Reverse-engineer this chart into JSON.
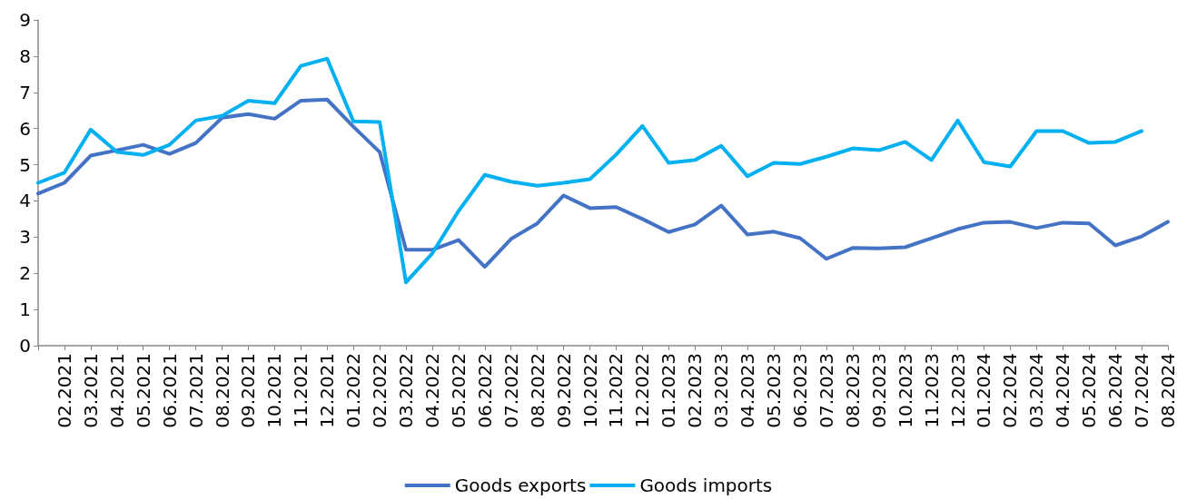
{
  "chart_data": {
    "type": "line",
    "categories": [
      null,
      "02.2021",
      "03.2021",
      "04.2021",
      "05.2021",
      "06.2021",
      "07.2021",
      "08.2021",
      "09.2021",
      "10.2021",
      "11.2021",
      "12.2021",
      "01.2022",
      "02.2022",
      "03.2022",
      "04.2022",
      "05.2022",
      "06.2022",
      "07.2022",
      "08.2022",
      "09.2022",
      "10.2022",
      "11.2022",
      "12.2022",
      "01.2023",
      "02.2023",
      "03.2023",
      "04.2023",
      "05.2023",
      "06.2023",
      "07.2023",
      "08.2023",
      "09.2023",
      "10.2023",
      "11.2023",
      "12.2023",
      "01.2024",
      "02.2024",
      "03.2024",
      "04.2024",
      "05.2024",
      "06.2024",
      "07.2024",
      "08.2024"
    ],
    "series": [
      {
        "name": "Goods exports",
        "color": "#4472c4",
        "values": [
          4.2,
          4.5,
          5.25,
          5.4,
          5.55,
          5.3,
          5.6,
          6.3,
          6.4,
          6.27,
          6.77,
          6.8,
          6.05,
          5.35,
          2.65,
          2.65,
          2.92,
          2.18,
          2.95,
          3.38,
          4.15,
          3.8,
          3.83,
          3.5,
          3.14,
          3.35,
          3.87,
          3.07,
          3.15,
          2.97,
          2.4,
          2.7,
          2.69,
          2.72,
          2.97,
          3.22,
          3.4,
          3.42,
          3.25,
          3.4,
          3.38,
          2.77,
          3.02,
          3.42
        ]
      },
      {
        "name": "Goods imports",
        "color": "#00b0f0",
        "values": [
          4.5,
          4.78,
          5.97,
          5.35,
          5.27,
          5.55,
          6.22,
          6.35,
          6.77,
          6.7,
          7.73,
          7.93,
          6.2,
          6.18,
          1.75,
          2.55,
          3.72,
          4.72,
          4.53,
          4.42,
          4.5,
          4.6,
          5.28,
          6.07,
          5.05,
          5.13,
          5.52,
          4.68,
          5.05,
          5.02,
          5.22,
          5.45,
          5.4,
          5.63,
          5.13,
          6.22,
          5.07,
          4.95,
          5.93,
          5.93,
          5.6,
          5.63,
          5.93,
          null
        ]
      }
    ],
    "ylim": [
      0,
      9
    ],
    "yticks": [
      0,
      1,
      2,
      3,
      4,
      5,
      6,
      7,
      8,
      9
    ],
    "grid": false,
    "legend": "bottom",
    "marker": "none",
    "line_style": "solid"
  }
}
